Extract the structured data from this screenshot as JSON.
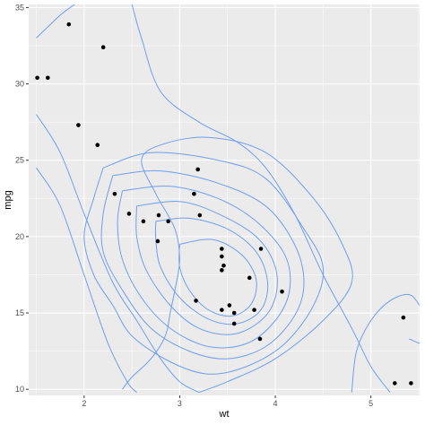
{
  "chart_data": {
    "type": "scatter",
    "xlabel": "wt",
    "ylabel": "mpg",
    "xlim": [
      1.42,
      5.51
    ],
    "ylim": [
      9.6,
      35.2
    ],
    "x_ticks": [
      2,
      3,
      4,
      5
    ],
    "y_ticks": [
      10,
      15,
      20,
      25,
      30,
      35
    ],
    "grid": true,
    "panel_background": "#ebebeb",
    "grid_color": "#ffffff",
    "point_color": "#000000",
    "contour_color": "#6f9ff0",
    "points": [
      {
        "x": 1.51,
        "y": 30.4
      },
      {
        "x": 1.62,
        "y": 30.4
      },
      {
        "x": 1.84,
        "y": 33.9
      },
      {
        "x": 1.94,
        "y": 27.3
      },
      {
        "x": 2.14,
        "y": 26.0
      },
      {
        "x": 2.2,
        "y": 32.4
      },
      {
        "x": 2.32,
        "y": 22.8
      },
      {
        "x": 2.47,
        "y": 21.5
      },
      {
        "x": 2.62,
        "y": 21.0
      },
      {
        "x": 2.77,
        "y": 19.7
      },
      {
        "x": 2.78,
        "y": 21.4
      },
      {
        "x": 2.88,
        "y": 21.0
      },
      {
        "x": 3.15,
        "y": 22.8
      },
      {
        "x": 3.17,
        "y": 15.8
      },
      {
        "x": 3.19,
        "y": 24.4
      },
      {
        "x": 3.21,
        "y": 21.4
      },
      {
        "x": 3.44,
        "y": 18.7
      },
      {
        "x": 3.44,
        "y": 19.2
      },
      {
        "x": 3.44,
        "y": 17.8
      },
      {
        "x": 3.44,
        "y": 15.2
      },
      {
        "x": 3.46,
        "y": 18.1
      },
      {
        "x": 3.52,
        "y": 15.5
      },
      {
        "x": 3.57,
        "y": 14.3
      },
      {
        "x": 3.57,
        "y": 15.0
      },
      {
        "x": 3.73,
        "y": 17.3
      },
      {
        "x": 3.78,
        "y": 15.2
      },
      {
        "x": 3.84,
        "y": 13.3
      },
      {
        "x": 3.85,
        "y": 19.2
      },
      {
        "x": 4.07,
        "y": 16.4
      },
      {
        "x": 5.25,
        "y": 10.4
      },
      {
        "x": 5.34,
        "y": 14.7
      },
      {
        "x": 5.42,
        "y": 10.4
      }
    ],
    "contours": [
      [
        [
          1.5,
          28.0
        ],
        [
          1.75,
          25.5
        ],
        [
          2.0,
          21.5
        ],
        [
          2.3,
          17.0
        ],
        [
          2.55,
          14.5
        ],
        [
          2.8,
          12.0
        ],
        [
          3.0,
          10.5
        ],
        [
          3.2,
          9.8
        ]
      ],
      [
        [
          1.5,
          24.5
        ],
        [
          1.75,
          22.0
        ],
        [
          2.0,
          17.5
        ],
        [
          2.25,
          13.0
        ],
        [
          2.45,
          10.5
        ],
        [
          2.55,
          9.8
        ]
      ],
      [
        [
          1.5,
          33.0
        ],
        [
          1.75,
          34.5
        ],
        [
          1.9,
          35.2
        ]
      ],
      [
        [
          2.5,
          35.2
        ],
        [
          2.6,
          33.0
        ],
        [
          2.8,
          29.5
        ],
        [
          3.2,
          27.5
        ],
        [
          3.6,
          26.2
        ],
        [
          3.9,
          24.5
        ],
        [
          4.2,
          21.5
        ],
        [
          4.5,
          17.5
        ],
        [
          4.8,
          14.0
        ],
        [
          5.0,
          11.5
        ],
        [
          5.2,
          9.8
        ]
      ],
      [
        [
          3.2,
          9.8
        ],
        [
          3.5,
          10.5
        ],
        [
          4.0,
          12.0
        ],
        [
          4.5,
          14.5
        ],
        [
          4.8,
          17.0
        ],
        [
          4.7,
          19.5
        ],
        [
          4.4,
          22.5
        ],
        [
          3.9,
          25.5
        ],
        [
          3.3,
          26.5
        ],
        [
          2.8,
          26.0
        ],
        [
          2.6,
          25.0
        ],
        [
          2.75,
          22.8
        ],
        [
          2.95,
          20.5
        ],
        [
          3.0,
          18.5
        ],
        [
          2.95,
          16.5
        ],
        [
          2.9,
          15.0
        ],
        [
          2.85,
          13.5
        ],
        [
          2.7,
          12.0
        ],
        [
          2.5,
          10.8
        ],
        [
          2.4,
          10.0
        ]
      ],
      [
        [
          2.2,
          24.5
        ],
        [
          2.7,
          25.5
        ],
        [
          3.4,
          25.0
        ],
        [
          3.9,
          23.8
        ],
        [
          4.3,
          20.5
        ],
        [
          4.5,
          18.0
        ],
        [
          4.4,
          15.5
        ],
        [
          4.1,
          13.0
        ],
        [
          3.7,
          11.5
        ],
        [
          3.3,
          11.0
        ],
        [
          2.9,
          11.8
        ],
        [
          2.5,
          13.5
        ],
        [
          2.3,
          15.5
        ],
        [
          2.1,
          17.5
        ],
        [
          2.0,
          20.0
        ],
        [
          2.1,
          22.5
        ],
        [
          2.2,
          24.5
        ]
      ],
      [
        [
          2.3,
          24.0
        ],
        [
          2.8,
          24.3
        ],
        [
          3.4,
          23.5
        ],
        [
          3.9,
          22.0
        ],
        [
          4.2,
          19.5
        ],
        [
          4.3,
          17.0
        ],
        [
          4.2,
          14.8
        ],
        [
          3.9,
          12.8
        ],
        [
          3.5,
          12.0
        ],
        [
          3.1,
          12.5
        ],
        [
          2.7,
          14.0
        ],
        [
          2.4,
          16.5
        ],
        [
          2.2,
          19.0
        ],
        [
          2.2,
          21.5
        ],
        [
          2.3,
          24.0
        ]
      ],
      [
        [
          2.4,
          23.0
        ],
        [
          2.9,
          23.3
        ],
        [
          3.4,
          22.5
        ],
        [
          3.8,
          21.0
        ],
        [
          4.1,
          18.8
        ],
        [
          4.15,
          16.5
        ],
        [
          4.0,
          14.5
        ],
        [
          3.7,
          13.0
        ],
        [
          3.3,
          12.8
        ],
        [
          2.9,
          14.0
        ],
        [
          2.6,
          16.0
        ],
        [
          2.4,
          18.5
        ],
        [
          2.35,
          21.0
        ],
        [
          2.4,
          23.0
        ]
      ],
      [
        [
          2.55,
          22.0
        ],
        [
          3.0,
          22.3
        ],
        [
          3.4,
          21.5
        ],
        [
          3.8,
          20.0
        ],
        [
          4.0,
          18.0
        ],
        [
          4.0,
          16.0
        ],
        [
          3.85,
          14.5
        ],
        [
          3.55,
          13.6
        ],
        [
          3.2,
          14.0
        ],
        [
          2.9,
          15.5
        ],
        [
          2.65,
          17.8
        ],
        [
          2.55,
          20.0
        ],
        [
          2.55,
          22.0
        ]
      ],
      [
        [
          2.75,
          21.0
        ],
        [
          3.1,
          21.2
        ],
        [
          3.5,
          20.5
        ],
        [
          3.8,
          19.0
        ],
        [
          3.92,
          17.0
        ],
        [
          3.85,
          15.2
        ],
        [
          3.6,
          14.3
        ],
        [
          3.3,
          14.6
        ],
        [
          3.0,
          16.0
        ],
        [
          2.8,
          18.0
        ],
        [
          2.75,
          19.8
        ],
        [
          2.75,
          21.0
        ]
      ],
      [
        [
          3.0,
          19.5
        ],
        [
          3.35,
          19.8
        ],
        [
          3.65,
          18.8
        ],
        [
          3.8,
          17.2
        ],
        [
          3.75,
          15.6
        ],
        [
          3.55,
          14.8
        ],
        [
          3.3,
          15.2
        ],
        [
          3.1,
          16.5
        ],
        [
          3.0,
          18.0
        ],
        [
          3.0,
          19.5
        ]
      ],
      [
        [
          4.8,
          9.8
        ],
        [
          4.85,
          12.5
        ],
        [
          5.0,
          14.5
        ],
        [
          5.2,
          15.8
        ],
        [
          5.4,
          16.2
        ],
        [
          5.51,
          15.5
        ]
      ],
      [
        [
          5.51,
          13.0
        ],
        [
          5.4,
          13.3
        ]
      ]
    ]
  }
}
